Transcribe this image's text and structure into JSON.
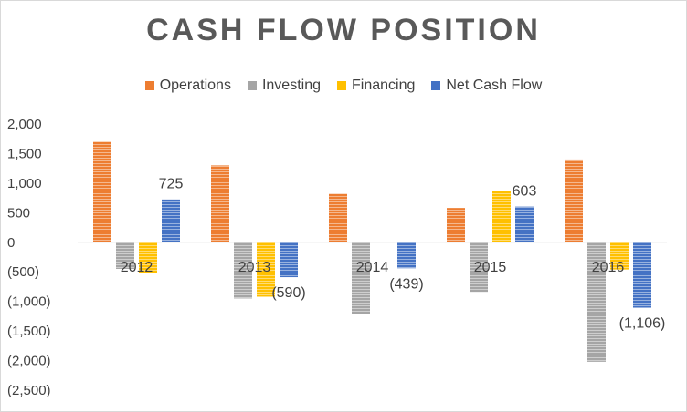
{
  "chart_data": {
    "type": "bar",
    "title": "CASH FLOW POSITION",
    "categories": [
      "2012",
      "2013",
      "2014",
      "2015",
      "2016"
    ],
    "series": [
      {
        "name": "Operations",
        "color": "#ED7D31",
        "values": [
          1700,
          1300,
          820,
          580,
          1400
        ]
      },
      {
        "name": "Investing",
        "color": "#A5A5A5",
        "values": [
          -450,
          -950,
          -1220,
          -840,
          -2020
        ]
      },
      {
        "name": "Financing",
        "color": "#FFC000",
        "values": [
          -520,
          -920,
          0,
          870,
          -460
        ]
      },
      {
        "name": "Net Cash Flow",
        "color": "#4472C4",
        "values": [
          725,
          -590,
          -439,
          603,
          -1106
        ]
      }
    ],
    "data_labels": [
      "725",
      "(590)",
      "(439)",
      "603",
      "(1,106)"
    ],
    "ylim": [
      -2500,
      2000
    ],
    "y_ticks": [
      2000,
      1500,
      1000,
      500,
      0,
      -500,
      -1000,
      -1500,
      -2000,
      -2500
    ],
    "y_tick_labels": [
      "2,000",
      "1,500",
      "1,000",
      "500",
      "0",
      "(500)",
      "(1,000)",
      "(1,500)",
      "(2,000)",
      "(2,500)"
    ],
    "legend_position": "top",
    "grid": false
  }
}
